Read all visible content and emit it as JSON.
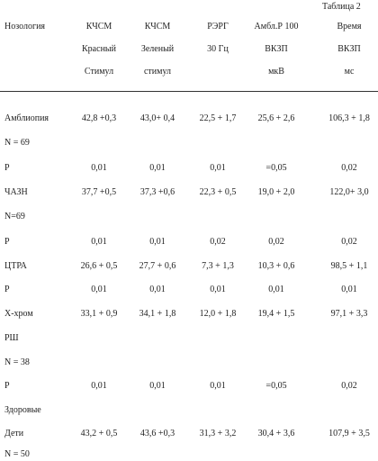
{
  "header": {
    "caption": "Таблица 2",
    "columns": [
      [
        "Нозология"
      ],
      [
        "КЧСМ",
        "Красный",
        "Стимул"
      ],
      [
        "КЧСМ",
        "Зеленый",
        "стимул"
      ],
      [
        "РЭРГ",
        "30 Гц"
      ],
      [
        "Амбл.Р 100",
        "ВКЗП",
        "мкВ"
      ],
      [
        "Время",
        "ВКЗП",
        "мс"
      ]
    ]
  },
  "table": {
    "rows": [
      [
        "Амблиопия",
        "42,8 +0,3",
        "43,0+ 0,4",
        "22,5 + 1,7",
        "25,6 + 2,6",
        "106,3 + 1,8"
      ],
      [
        "N = 69"
      ],
      [
        "Р",
        "0,01",
        "0,01",
        "0,01",
        "=0,05",
        "0,02"
      ],
      [
        "ЧАЗН",
        "37,7 +0,5",
        "37,3 +0,6",
        "22,3 + 0,5",
        "19,0 + 2,0",
        "122,0+ 3,0"
      ],
      [
        "N=69"
      ],
      [
        "Р",
        "0,01",
        "0,01",
        "0,02",
        "0,02",
        "0,02"
      ],
      [
        "ЦТРА",
        "26,6 + 0,5",
        "27,7 + 0,6",
        "7,3 + 1,3",
        "10,3 + 0,6",
        "98,5 + 1,1"
      ],
      [
        "Р",
        "0,01",
        "0,01",
        "0,01",
        "0,01",
        "0,01"
      ],
      [
        "Х-хром",
        "33,1 + 0,9",
        "34,1 + 1,8",
        "12,0 + 1,8",
        "19,4 + 1,5",
        "97,1 + 3,3"
      ],
      [
        "РШ"
      ],
      [
        "N = 38"
      ],
      [
        "Р",
        "0,01",
        "0,01",
        "0,01",
        "=0,05",
        "0,02"
      ],
      [
        "Здоровые"
      ],
      [
        "Дети",
        "43,2 + 0,5",
        "43,6 +0,3",
        "31,3 + 3,2",
        "30,4 + 3,6",
        "107,9 + 3,5"
      ],
      [
        "N = 50"
      ]
    ]
  }
}
